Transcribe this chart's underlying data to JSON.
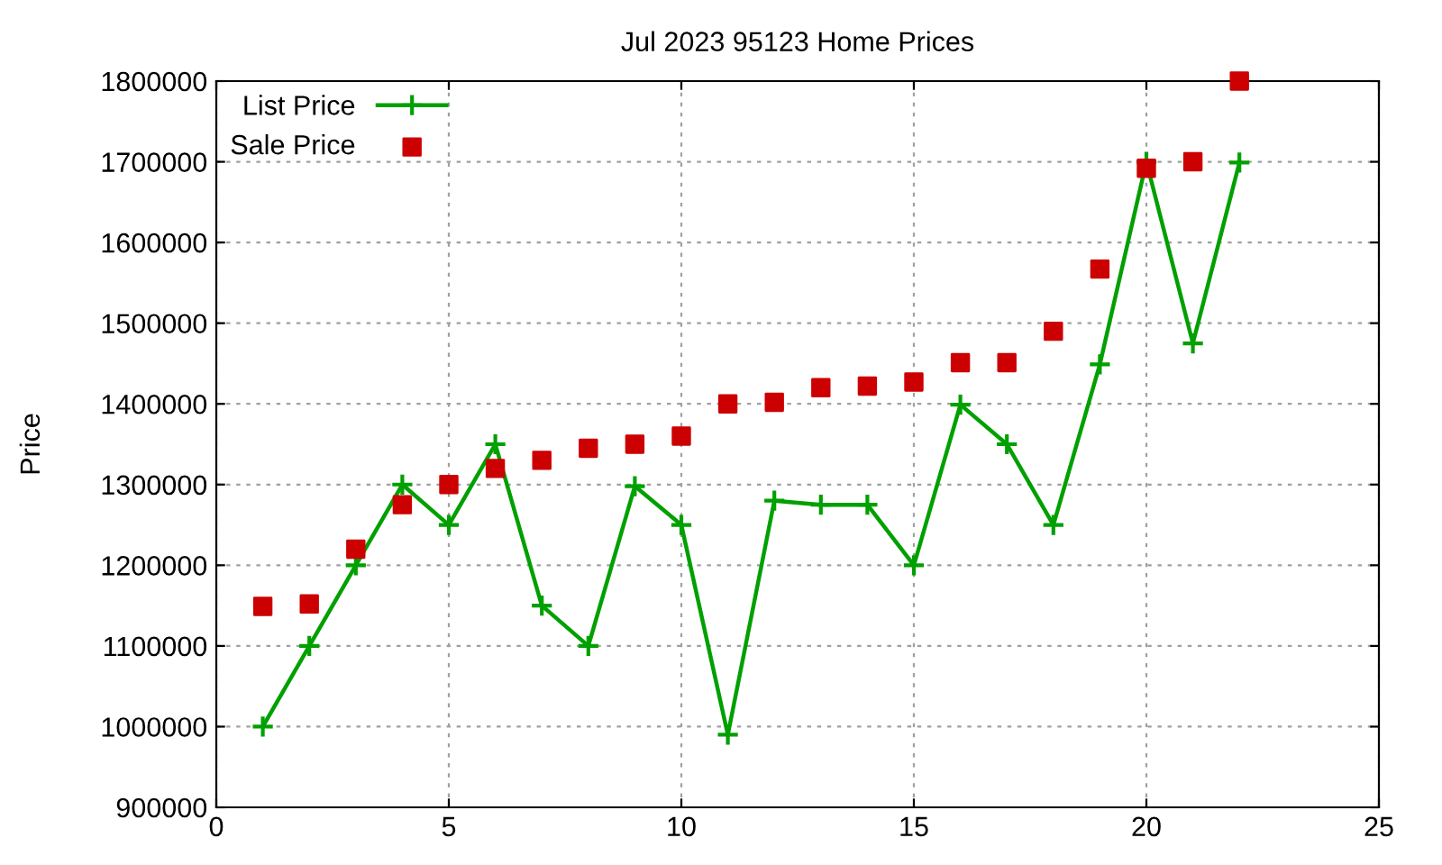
{
  "chart_data": {
    "type": "line",
    "title": "Jul 2023 95123 Home Prices",
    "ylabel": "Price",
    "x": [
      1,
      2,
      3,
      4,
      5,
      6,
      7,
      8,
      9,
      10,
      11,
      12,
      13,
      14,
      15,
      16,
      17,
      18,
      19,
      20,
      21,
      22
    ],
    "series": [
      {
        "name": "List Price",
        "marker": "cross",
        "color": "#00a000",
        "values": [
          1000000,
          1100000,
          1200000,
          1300000,
          1250000,
          1350000,
          1150000,
          1100000,
          1298000,
          1250000,
          990000,
          1280000,
          1275000,
          1275000,
          1200000,
          1399000,
          1350000,
          1250000,
          1449000,
          1700000,
          1475000,
          1699000
        ]
      },
      {
        "name": "Sale Price",
        "type": "scatter",
        "marker": "square",
        "color": "#cc0000",
        "values": [
          1149000,
          1152000,
          1220000,
          1275000,
          1300000,
          1320000,
          1330000,
          1345000,
          1350000,
          1360000,
          1400000,
          1402000,
          1420000,
          1422000,
          1427000,
          1451000,
          1451000,
          1490000,
          1567000,
          1692000,
          1700000,
          1800000
        ]
      }
    ],
    "xlim": [
      0,
      25
    ],
    "xticks": [
      0,
      5,
      10,
      15,
      20,
      25
    ],
    "ylim": [
      900000,
      1800000
    ],
    "yticks": [
      900000,
      1000000,
      1100000,
      1200000,
      1300000,
      1400000,
      1500000,
      1600000,
      1700000,
      1800000
    ],
    "grid": true,
    "legend": "top left"
  }
}
